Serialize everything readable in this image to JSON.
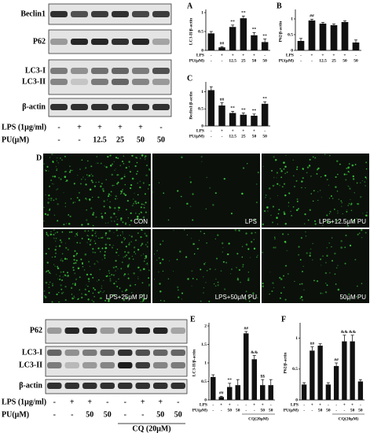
{
  "top_blot": {
    "proteins": [
      "Beclin1",
      "P62",
      "LC3-I",
      "LC3-II",
      "β-actin"
    ],
    "rows": [
      {
        "label": "LPS (1μg/ml)",
        "cells": [
          "-",
          "+",
          "+",
          "+",
          "+",
          "-"
        ]
      },
      {
        "label": "PU(μM)",
        "cells": [
          "-",
          "-",
          "12.5",
          "25",
          "50",
          "50"
        ]
      }
    ]
  },
  "chart_data": [
    {
      "type": "bar",
      "panel": "A",
      "ylabel": "LC3-II/β-actin",
      "color": "#111111",
      "values": [
        0.45,
        0.08,
        0.62,
        0.85,
        0.4,
        0.22
      ],
      "errors": [
        0.05,
        0.02,
        0.05,
        0.06,
        0.07,
        0.08
      ],
      "annotations": [
        null,
        "##",
        "**",
        "**",
        "**",
        "**"
      ],
      "ylim": [
        0,
        1
      ],
      "yticks": [
        0,
        0.5,
        1
      ],
      "rows": [
        {
          "label": "LPS",
          "cells": [
            "-",
            "+",
            "+",
            "+",
            "+",
            "-"
          ]
        },
        {
          "label": "PU(μM)",
          "cells": [
            "-",
            "-",
            "12.5",
            "25",
            "50",
            "50"
          ]
        }
      ]
    },
    {
      "type": "bar",
      "panel": "B",
      "ylabel": "P62/β-actin",
      "color": "#111111",
      "values": [
        0.3,
        0.95,
        0.85,
        0.8,
        0.9,
        0.25
      ],
      "errors": [
        0.08,
        0.04,
        0.04,
        0.04,
        0.04,
        0.08
      ],
      "annotations": [
        null,
        "##",
        null,
        null,
        null,
        null
      ],
      "ylim": [
        0,
        1.2
      ],
      "yticks": [
        0,
        0.5,
        1
      ],
      "rows": [
        {
          "label": "LPS",
          "cells": [
            "-",
            "+",
            "+",
            "+",
            "+",
            "-"
          ]
        },
        {
          "label": "PU(μM)",
          "cells": [
            "-",
            "-",
            "12.5",
            "25",
            "50",
            "50"
          ]
        }
      ]
    },
    {
      "type": "bar",
      "panel": "C",
      "ylabel": "Beclin1/β-actin",
      "color": "#111111",
      "values": [
        1.05,
        0.6,
        0.38,
        0.33,
        0.3,
        0.65
      ],
      "errors": [
        0.1,
        0.08,
        0.05,
        0.05,
        0.05,
        0.06
      ],
      "annotations": [
        null,
        "##",
        "**",
        "**",
        "**",
        "**"
      ],
      "ylim": [
        0,
        1.2
      ],
      "yticks": [
        0,
        0.5,
        1
      ],
      "rows": [
        {
          "label": "LPS",
          "cells": [
            "-",
            "+",
            "+",
            "+",
            "+",
            "-"
          ]
        },
        {
          "label": "PU(μM)",
          "cells": [
            "-",
            "-",
            "12.5",
            "25",
            "50",
            "50"
          ]
        }
      ]
    },
    {
      "type": "bar",
      "panel": "E",
      "ylabel": "LC3-II/β-actin",
      "color": "#111111",
      "values": [
        0.62,
        0.08,
        0.35,
        0.4,
        1.8,
        1.1,
        0.4,
        0.4
      ],
      "errors": [
        0.06,
        0.02,
        0.1,
        0.15,
        0.05,
        0.1,
        0.15,
        0.15
      ],
      "annotations": [
        null,
        "##",
        "**",
        null,
        "##",
        "&&",
        "$$",
        null
      ],
      "ylim": [
        0,
        2
      ],
      "yticks": [
        0,
        0.5,
        1,
        1.5,
        2
      ],
      "rows": [
        {
          "label": "LPS",
          "cells": [
            "-",
            "+",
            "+",
            "-",
            "-",
            "+",
            "+",
            "-"
          ]
        },
        {
          "label": "PU(μM)",
          "cells": [
            "-",
            "-",
            "50",
            "50",
            "-",
            "-",
            "50",
            "50"
          ]
        }
      ],
      "group": "CQ(20μM)"
    },
    {
      "type": "bar",
      "panel": "F",
      "ylabel": "P62/β-actin",
      "color": "#111111",
      "values": [
        0.25,
        0.8,
        0.88,
        0.25,
        0.55,
        0.95,
        0.95,
        0.3
      ],
      "errors": [
        0.03,
        0.06,
        0.03,
        0.03,
        0.05,
        0.1,
        0.1,
        0.03
      ],
      "annotations": [
        null,
        "##",
        null,
        null,
        "##",
        "&&",
        "&&",
        null
      ],
      "ylim": [
        0,
        1.2
      ],
      "yticks": [
        0,
        0.5,
        1
      ],
      "rows": [
        {
          "label": "LPS",
          "cells": [
            "-",
            "+",
            "+",
            "-",
            "-",
            "+",
            "+",
            "-"
          ]
        },
        {
          "label": "PU(μM)",
          "cells": [
            "-",
            "-",
            "50",
            "50",
            "-",
            "-",
            "50",
            "50"
          ]
        }
      ],
      "group": "CQ(20μM)"
    }
  ],
  "panel_d": {
    "label": "D",
    "images": [
      "CON",
      "LPS",
      "LPS+12.5μM PU",
      "LPS+25μM PU",
      "LPS+50μM PU",
      "50μM PU"
    ]
  },
  "bottom_blot": {
    "proteins": [
      "P62",
      "LC3-I",
      "LC3-II",
      "β-actin"
    ],
    "rows": [
      {
        "label": "LPS (1μg/ml)",
        "cells": [
          "-",
          "+",
          "+",
          "-",
          "-",
          "+",
          "+",
          "-"
        ]
      },
      {
        "label": "PU(μM)",
        "cells": [
          "-",
          "-",
          "50",
          "50",
          "-",
          "-",
          "50",
          "50"
        ]
      }
    ],
    "group": "CQ (20μM)"
  }
}
